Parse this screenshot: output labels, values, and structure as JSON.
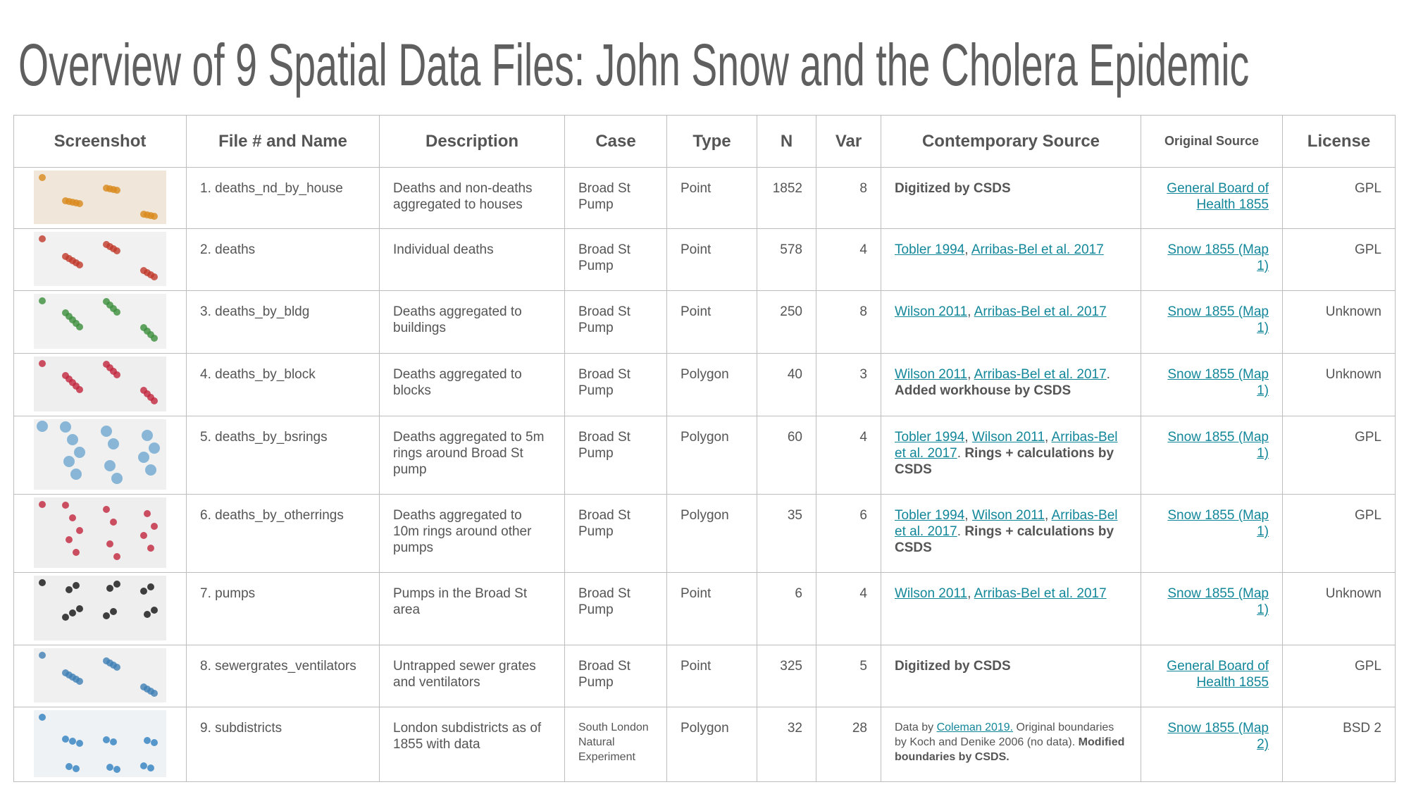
{
  "title": "Overview of 9 Spatial Data Files: John Snow and the Cholera Epidemic",
  "table": {
    "headers": [
      "Screenshot",
      "File # and Name",
      "Description",
      "Case",
      "Type",
      "N",
      "Var",
      "Contemporary Source",
      "Original Source",
      "License"
    ],
    "rows": [
      [
        "1. deaths_nd_by_house",
        "Deaths and non-deaths aggregated to houses",
        "Broad St Pump",
        "Point",
        1852,
        8,
        [
          {
            "text": "Digitized by CSDS",
            "bold": true
          }
        ],
        [
          {
            "text": "General Board of Health 1855",
            "link": true
          }
        ],
        "GPL"
      ],
      [
        "2. deaths",
        "Individual deaths",
        "Broad St Pump",
        "Point",
        578,
        4,
        [
          {
            "text": "Tobler 1994",
            "link": true
          },
          {
            "text": ", "
          },
          {
            "text": "Arribas-Bel et al. 2017",
            "link": true
          }
        ],
        [
          {
            "text": "Snow 1855 (Map 1)",
            "link": true
          }
        ],
        "GPL"
      ],
      [
        "3. deaths_by_bldg",
        "Deaths aggregated to buildings",
        "Broad St Pump",
        "Point",
        250,
        8,
        [
          {
            "text": "Wilson 2011",
            "link": true
          },
          {
            "text": ", "
          },
          {
            "text": "Arribas-Bel et al. 2017",
            "link": true
          }
        ],
        [
          {
            "text": "Snow 1855 (Map 1)",
            "link": true
          }
        ],
        "Unknown"
      ],
      [
        "4. deaths_by_block",
        "Deaths aggregated to blocks",
        "Broad St Pump",
        "Polygon",
        40,
        3,
        [
          {
            "text": "Wilson 2011",
            "link": true
          },
          {
            "text": ", "
          },
          {
            "text": "Arribas-Bel et al. 2017",
            "link": true
          },
          {
            "text": ". "
          },
          {
            "text": "Added workhouse by CSDS",
            "bold": true
          }
        ],
        [
          {
            "text": "Snow 1855 (Map 1)",
            "link": true
          }
        ],
        "Unknown"
      ],
      [
        "5. deaths_by_bsrings",
        "Deaths aggregated to 5m rings around Broad St pump",
        "Broad St Pump",
        "Polygon",
        60,
        4,
        [
          {
            "text": "Tobler 1994",
            "link": true
          },
          {
            "text": ", "
          },
          {
            "text": "Wilson 2011",
            "link": true
          },
          {
            "text": ", "
          },
          {
            "text": "Arribas-Bel et al. 2017",
            "link": true
          },
          {
            "text": ". "
          },
          {
            "text": "Rings + calculations by CSDS",
            "bold": true
          }
        ],
        [
          {
            "text": "Snow 1855 (Map 1)",
            "link": true
          }
        ],
        "GPL"
      ],
      [
        "6. deaths_by_otherrings",
        "Deaths aggregated to 10m rings around other pumps",
        "Broad St Pump",
        "Polygon",
        35,
        6,
        [
          {
            "text": "Tobler 1994",
            "link": true
          },
          {
            "text": ", "
          },
          {
            "text": "Wilson 2011",
            "link": true
          },
          {
            "text": ", "
          },
          {
            "text": "Arribas-Bel et al. 2017",
            "link": true
          },
          {
            "text": ". "
          },
          {
            "text": "Rings + calculations by CSDS",
            "bold": true
          }
        ],
        [
          {
            "text": "Snow 1855 (Map 1)",
            "link": true
          }
        ],
        "GPL"
      ],
      [
        "7. pumps",
        "Pumps in the Broad St area",
        "Broad St Pump",
        "Point",
        6,
        4,
        [
          {
            "text": "Wilson 2011",
            "link": true
          },
          {
            "text": ", "
          },
          {
            "text": "Arribas-Bel et al. 2017",
            "link": true
          }
        ],
        [
          {
            "text": "Snow 1855 (Map 1)",
            "link": true
          }
        ],
        "Unknown"
      ],
      [
        "8. sewergrates_ventilators",
        "Untrapped sewer grates and ventilators",
        "Broad St Pump",
        "Point",
        325,
        5,
        [
          {
            "text": "Digitized by CSDS",
            "bold": true
          }
        ],
        [
          {
            "text": "General Board of Health 1855",
            "link": true
          }
        ],
        "GPL"
      ],
      [
        "9. subdistricts",
        "London subdistricts as of 1855 with data",
        "South London Natural Experiment",
        "Polygon",
        32,
        28,
        [
          {
            "text": "Data by "
          },
          {
            "text": "Coleman 2019.",
            "link": true
          },
          {
            "text": " Original boundaries by Koch and Denike 2006 (no data). "
          },
          {
            "text": "Modified boundaries by CSDS.",
            "bold": true
          }
        ],
        [
          {
            "text": "Snow 1855 (Map 2)",
            "link": true
          }
        ],
        "BSD 2"
      ]
    ]
  }
}
